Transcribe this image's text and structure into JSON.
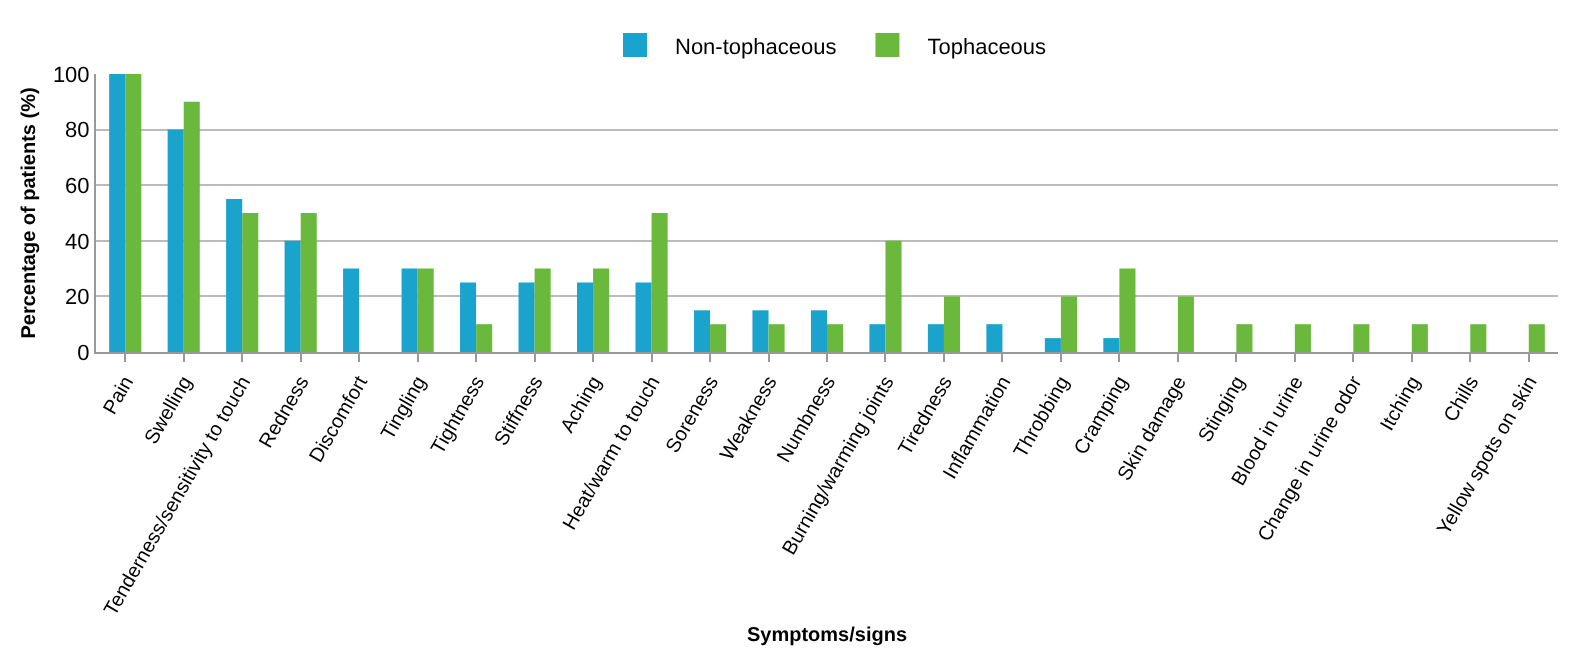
{
  "chart_data": {
    "type": "bar",
    "xlabel": "Symptoms/signs",
    "ylabel": "Percentage of patients (%)",
    "categories": [
      "Pain",
      "Swelling",
      "Tenderness/sensitivity to touch",
      "Redness",
      "Discomfort",
      "Tingling",
      "Tightness",
      "Stiffness",
      "Aching",
      "Heat/warm to touch",
      "Soreness",
      "Weakness",
      "Numbness",
      "Burning/warming joints",
      "Tiredness",
      "Inflammation",
      "Throbbing",
      "Cramping",
      "Skin damage",
      "Stinging",
      "Blood in urine",
      "Change in urine odor",
      "Itching",
      "Chills",
      "Yellow spots on skin"
    ],
    "series": [
      {
        "name": "Non-tophaceous",
        "color": "#1aa3cc",
        "values": [
          100,
          80,
          55,
          40,
          30,
          30,
          25,
          25,
          25,
          25,
          15,
          15,
          15,
          10,
          10,
          10,
          5,
          5,
          0,
          0,
          0,
          0,
          0,
          0,
          0
        ]
      },
      {
        "name": "Tophaceous",
        "color": "#6ab93d",
        "values": [
          100,
          90,
          50,
          50,
          0,
          30,
          10,
          30,
          30,
          50,
          10,
          10,
          10,
          40,
          20,
          0,
          20,
          30,
          20,
          10,
          10,
          10,
          10,
          10,
          10
        ]
      }
    ],
    "ylim": [
      0,
      100
    ],
    "yticks": [
      0,
      20,
      40,
      60,
      80,
      100
    ],
    "grid": "y",
    "legend": "top"
  }
}
